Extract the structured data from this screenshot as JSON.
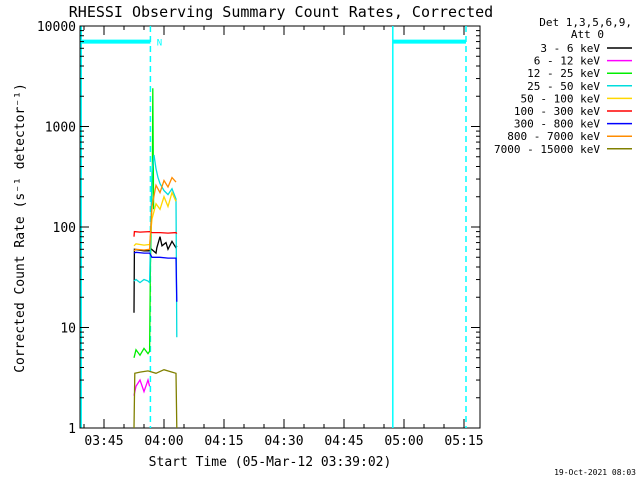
{
  "chart_data": {
    "type": "line",
    "title": "RHESSI Observing Summary Count Rates, Corrected",
    "xlabel": "Start Time (05-Mar-12 03:39:02)",
    "ylabel": "Corrected Count Rate (s⁻¹ detector⁻¹)",
    "yscale": "log",
    "ylim": [
      1,
      10000
    ],
    "xlim_minutes": [
      0,
      100
    ],
    "x_start": "03:39",
    "x_ticks": [
      {
        "label": "03:45",
        "minute": 6
      },
      {
        "label": "04:00",
        "minute": 21
      },
      {
        "label": "04:15",
        "minute": 36
      },
      {
        "label": "04:30",
        "minute": 51
      },
      {
        "label": "04:45",
        "minute": 66
      },
      {
        "label": "05:00",
        "minute": 81
      },
      {
        "label": "05:15",
        "minute": 96
      }
    ],
    "y_ticks": [
      {
        "label": "1",
        "value": 1
      },
      {
        "label": "10",
        "value": 10
      },
      {
        "label": "100",
        "value": 100
      },
      {
        "label": "1000",
        "value": 1000
      },
      {
        "label": "10000",
        "value": 10000
      }
    ],
    "legend_header": [
      "Det 1,3,5,6,9,",
      "Att 0"
    ],
    "legend_position": "right",
    "series": [
      {
        "name": "3 - 6 keV",
        "color": "#000000",
        "points": [
          [
            13.5,
            14
          ],
          [
            13.6,
            60
          ],
          [
            16,
            58
          ],
          [
            17.3,
            58
          ],
          [
            17.5,
            62
          ],
          [
            19,
            55
          ],
          [
            19.2,
            62
          ],
          [
            20,
            80
          ],
          [
            20.5,
            65
          ],
          [
            21.5,
            70
          ],
          [
            22,
            60
          ],
          [
            23,
            72
          ],
          [
            24,
            62
          ],
          [
            24.2,
            65
          ]
        ]
      },
      {
        "name": "6 - 12 keV",
        "color": "#ff00ff",
        "points": [
          [
            13.5,
            2.1
          ],
          [
            14,
            2.6
          ],
          [
            15,
            3.0
          ],
          [
            16,
            2.3
          ],
          [
            17,
            3.0
          ],
          [
            17.4,
            2.6
          ]
        ]
      },
      {
        "name": "12 - 25 keV",
        "color": "#00ee00",
        "points": [
          [
            13.5,
            5.0
          ],
          [
            14,
            6.0
          ],
          [
            15,
            5.3
          ],
          [
            16,
            6.2
          ],
          [
            17,
            5.5
          ],
          [
            17.4,
            5.8
          ],
          [
            17.6,
            40
          ],
          [
            18.1,
            400
          ],
          [
            18.2,
            2400
          ],
          [
            18.4,
            150
          ]
        ]
      },
      {
        "name": "25 - 50 keV",
        "color": "#00dddd",
        "points": [
          [
            13.5,
            29
          ],
          [
            14,
            30
          ],
          [
            15,
            28
          ],
          [
            16,
            30
          ],
          [
            17,
            29
          ],
          [
            17.4,
            28
          ],
          [
            18,
            350
          ],
          [
            18.5,
            520
          ],
          [
            19,
            380
          ],
          [
            19.5,
            310
          ],
          [
            20,
            270
          ],
          [
            21,
            230
          ],
          [
            22,
            210
          ],
          [
            23,
            240
          ],
          [
            24,
            190
          ],
          [
            24.2,
            8
          ]
        ]
      },
      {
        "name": "50 - 100 keV",
        "color": "#ffd700",
        "points": [
          [
            13.5,
            65
          ],
          [
            14,
            68
          ],
          [
            16,
            66
          ],
          [
            17.4,
            67
          ],
          [
            18,
            120
          ],
          [
            19,
            170
          ],
          [
            20,
            150
          ],
          [
            21,
            200
          ],
          [
            22,
            160
          ],
          [
            23,
            220
          ],
          [
            24,
            180
          ]
        ]
      },
      {
        "name": "100 - 300 keV",
        "color": "#ff0000",
        "points": [
          [
            13.5,
            80
          ],
          [
            13.6,
            90
          ],
          [
            15,
            89
          ],
          [
            17.4,
            90
          ],
          [
            18,
            88
          ],
          [
            20,
            88
          ],
          [
            22,
            87
          ],
          [
            24,
            88
          ],
          [
            24.2,
            86
          ]
        ]
      },
      {
        "name": "300 - 800 keV",
        "color": "#0000ff",
        "points": [
          [
            13.5,
            55
          ],
          [
            14,
            56
          ],
          [
            16,
            55
          ],
          [
            17.4,
            55
          ],
          [
            18,
            50
          ],
          [
            20,
            50
          ],
          [
            22,
            49
          ],
          [
            24,
            49
          ],
          [
            24.2,
            18
          ]
        ]
      },
      {
        "name": "800 - 7000 keV",
        "color": "#ff8c00",
        "points": [
          [
            13.5,
            58
          ],
          [
            14,
            60
          ],
          [
            16,
            59
          ],
          [
            17.4,
            60
          ],
          [
            18,
            160
          ],
          [
            19,
            260
          ],
          [
            20,
            220
          ],
          [
            21,
            290
          ],
          [
            22,
            250
          ],
          [
            23,
            310
          ],
          [
            24,
            280
          ]
        ]
      },
      {
        "name": "7000 - 15000 keV",
        "color": "#808000",
        "points": [
          [
            13.5,
            1.0
          ],
          [
            13.7,
            3.5
          ],
          [
            15,
            3.6
          ],
          [
            17,
            3.7
          ],
          [
            19,
            3.5
          ],
          [
            21,
            3.8
          ],
          [
            23,
            3.6
          ],
          [
            24,
            3.5
          ],
          [
            24.2,
            1.0
          ]
        ]
      }
    ],
    "markers": [
      {
        "type": "solid",
        "color": "#00ffff",
        "minute": 0.3
      },
      {
        "type": "solid",
        "color": "#00ffff",
        "minute": 78.2
      },
      {
        "type": "dashed",
        "color": "#00ffff",
        "minute": 17.6
      },
      {
        "type": "dashed",
        "color": "#00ffff",
        "minute": 96.5
      }
    ],
    "bars": [
      {
        "color": "#00ffff",
        "from": 0.3,
        "to": 17.6,
        "value": 7000
      },
      {
        "color": "#00ffff",
        "from": 78.2,
        "to": 96.5,
        "value": 7000
      }
    ],
    "flag_label": {
      "text": "N",
      "minute": 19.2,
      "value": 7000,
      "color": "#00ffff"
    }
  },
  "footer": {
    "timestamp": "19-Oct-2021 08:03"
  }
}
